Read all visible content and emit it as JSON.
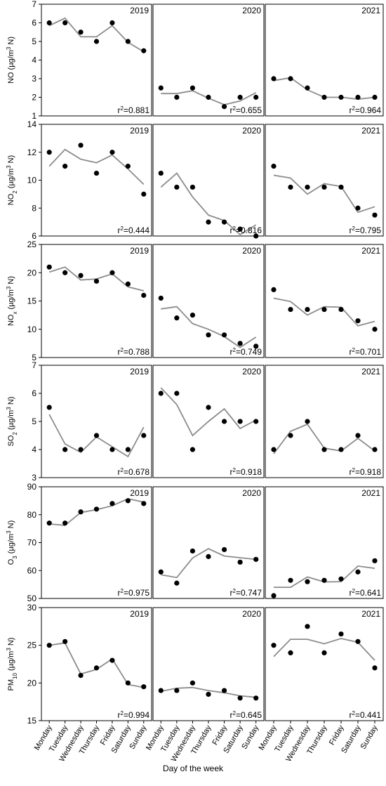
{
  "chart_data": {
    "type": "scatter",
    "xlabel": "Day of the week",
    "categories": [
      "Monday",
      "Tuesday",
      "Wednesday",
      "Thursday",
      "Friday",
      "Saturday",
      "Sunday"
    ],
    "years": [
      "2019",
      "2020",
      "2021"
    ],
    "series_style": {
      "points": "filled black circles (observed)",
      "line": "gray line (fitted)",
      "line_color": "#8c8c8c",
      "point_color": "#000000"
    },
    "rows": [
      {
        "ylabel": {
          "base": "NO",
          "sub": "",
          "unit": " (µg/m",
          "sup": "3",
          "unit_end": " N)"
        },
        "ylim": [
          1,
          7
        ],
        "yticks": [
          1,
          2,
          3,
          4,
          5,
          6,
          7
        ],
        "panels": [
          {
            "year": "2019",
            "r2": "=0.881",
            "observed": [
              6,
              6,
              5.5,
              5,
              6,
              5,
              4.5
            ],
            "fitted": [
              5.85,
              6.25,
              5.25,
              5.25,
              5.85,
              4.95,
              4.45
            ]
          },
          {
            "year": "2020",
            "r2": "=0.655",
            "observed": [
              2.5,
              2,
              2.5,
              2,
              1.5,
              2,
              2
            ],
            "fitted": [
              2.2,
              2.2,
              2.35,
              1.95,
              1.6,
              1.8,
              2.25
            ]
          },
          {
            "year": "2021",
            "r2": "=0.964",
            "observed": [
              3,
              3,
              2.5,
              2,
              2,
              2,
              2
            ],
            "fitted": [
              2.9,
              3.05,
              2.4,
              2.0,
              2.0,
              1.9,
              2.0
            ]
          }
        ]
      },
      {
        "ylabel": {
          "base": "NO",
          "sub": "2",
          "unit": " (µg/m",
          "sup": "3",
          "unit_end": " N)"
        },
        "ylim": [
          6,
          14
        ],
        "yticks": [
          6,
          8,
          10,
          12,
          14
        ],
        "panels": [
          {
            "year": "2019",
            "r2": "=0.444",
            "observed": [
              12,
              11,
              12.5,
              10.5,
              12,
              11,
              9
            ],
            "fitted": [
              11,
              12.2,
              11.5,
              11.25,
              11.8,
              10.8,
              9.7
            ]
          },
          {
            "year": "2020",
            "r2": "=0.816",
            "observed": [
              10.5,
              9.5,
              9.5,
              7,
              7,
              6.5,
              6
            ],
            "fitted": [
              9.5,
              10.5,
              8.8,
              7.5,
              7.1,
              6.1,
              6.8
            ]
          },
          {
            "year": "2021",
            "r2": "=0.795",
            "observed": [
              11,
              9.5,
              9.5,
              9.5,
              9.5,
              8,
              7.5
            ],
            "fitted": [
              10.35,
              10.15,
              9.0,
              9.75,
              9.55,
              7.7,
              8.1
            ]
          }
        ]
      },
      {
        "ylabel": {
          "base": "NO",
          "sub": "x",
          "unit": " (µg/m",
          "sup": "3",
          "unit_end": " N)"
        },
        "ylim": [
          5,
          25
        ],
        "yticks": [
          5,
          10,
          15,
          20,
          25
        ],
        "panels": [
          {
            "year": "2019",
            "r2": "=0.788",
            "observed": [
              21,
              20,
              19.5,
              18.5,
              20,
              18,
              16
            ],
            "fitted": [
              20.1,
              21,
              18.7,
              18.9,
              19.8,
              17.5,
              16.8
            ]
          },
          {
            "year": "2020",
            "r2": "=0.749",
            "observed": [
              15.5,
              12,
              12.5,
              9,
              9,
              7.5,
              7
            ],
            "fitted": [
              13.6,
              14,
              11,
              10,
              8.7,
              6.8,
              8.6
            ]
          },
          {
            "year": "2021",
            "r2": "=0.701",
            "observed": [
              17,
              13.5,
              13.5,
              13.5,
              13.5,
              11.5,
              10
            ],
            "fitted": [
              15.5,
              14.9,
              12.5,
              14,
              13.9,
              10.6,
              11.4
            ]
          }
        ]
      },
      {
        "ylabel": {
          "base": "SO",
          "sub": "2",
          "unit": " (µg/m",
          "sup": "3",
          "unit_end": " N)"
        },
        "ylim": [
          3,
          7
        ],
        "yticks": [
          3,
          4,
          5,
          6,
          7
        ],
        "panels": [
          {
            "year": "2019",
            "r2": "=0.678",
            "observed": [
              5.5,
              4,
              4,
              4.5,
              4,
              4,
              4.5
            ],
            "fitted": [
              5.25,
              4.2,
              3.9,
              4.45,
              4.1,
              3.75,
              4.8
            ]
          },
          {
            "year": "2020",
            "r2": "=0.918",
            "observed": [
              6,
              6,
              4,
              5.5,
              5,
              5,
              5
            ],
            "fitted": [
              6.2,
              5.6,
              4.5,
              5,
              5.45,
              4.75,
              5.05
            ]
          },
          {
            "year": "2021",
            "r2": "=0.918",
            "observed": [
              4,
              4.5,
              5,
              4,
              4,
              4.5,
              4
            ],
            "fitted": [
              3.85,
              4.65,
              4.9,
              4.05,
              3.95,
              4.4,
              3.95
            ]
          }
        ]
      },
      {
        "ylabel": {
          "base": "O",
          "sub": "3",
          "unit": " (µg/m",
          "sup": "3",
          "unit_end": " N)"
        },
        "ylim": [
          50,
          90
        ],
        "yticks": [
          50,
          60,
          70,
          80,
          90
        ],
        "panels": [
          {
            "year": "2019",
            "r2": "=0.975",
            "observed": [
              77,
              77,
              81,
              82,
              84,
              85,
              84
            ],
            "fitted": [
              76.7,
              76.2,
              80.8,
              81.8,
              83.2,
              85.7,
              84.5
            ]
          },
          {
            "year": "2020",
            "r2": "=0.747",
            "observed": [
              59.5,
              55.5,
              67,
              65,
              67.5,
              63,
              64
            ],
            "fitted": [
              58.5,
              57.5,
              64.5,
              67.8,
              65.2,
              64.6,
              64
            ]
          },
          {
            "year": "2021",
            "r2": "=0.641",
            "observed": [
              51,
              56.5,
              56,
              56.5,
              57,
              59.5,
              63.5
            ],
            "fitted": [
              54,
              54,
              57.7,
              55.9,
              56,
              61.6,
              60.8
            ]
          }
        ]
      },
      {
        "ylabel": {
          "base": "PM",
          "sub": "10",
          "unit": " (µg/m",
          "sup": "3",
          "unit_end": " N)"
        },
        "ylim": [
          15,
          30
        ],
        "yticks": [
          15,
          20,
          25,
          30
        ],
        "panels": [
          {
            "year": "2019",
            "r2": "=0.994",
            "observed": [
              25,
              25.5,
              21,
              22,
              23,
              20,
              19.5
            ],
            "fitted": [
              25,
              25.3,
              21.2,
              21.8,
              23.2,
              19.8,
              19.4
            ]
          },
          {
            "year": "2020",
            "r2": "=0.645",
            "observed": [
              19,
              19,
              20,
              18.5,
              19,
              18,
              18
            ],
            "fitted": [
              18.9,
              19.3,
              19.4,
              19,
              18.7,
              18.3,
              18.1
            ]
          },
          {
            "year": "2021",
            "r2": "=0.441",
            "observed": [
              25,
              24,
              27.5,
              24,
              26.5,
              25.5,
              22
            ],
            "fitted": [
              23.5,
              25.8,
              25.8,
              25.2,
              25.9,
              25.4,
              23
            ]
          }
        ]
      }
    ]
  }
}
